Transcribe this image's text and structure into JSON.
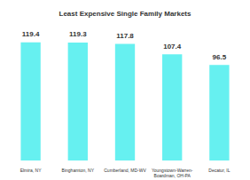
{
  "chart_data": {
    "type": "bar",
    "title": "Least Expensive Single Family Markets",
    "categories": [
      "Elmira, NY",
      "Binghamton, NY",
      "Cumberland, MD-WV",
      "Youngstown-Warren-Boardman, OH-PA",
      "Decatur, IL"
    ],
    "values": [
      119.4,
      119.3,
      117.8,
      107.4,
      96.5
    ],
    "color": "#66f0f0",
    "ylim": [
      0,
      130
    ],
    "grid": false,
    "data_labels": true,
    "tick_labels": "x"
  }
}
